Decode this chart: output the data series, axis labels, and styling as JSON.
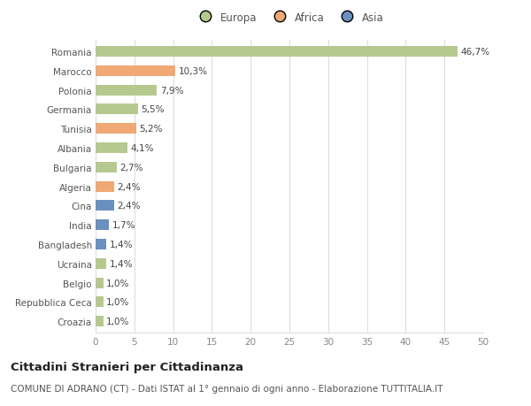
{
  "categories": [
    "Romania",
    "Marocco",
    "Polonia",
    "Germania",
    "Tunisia",
    "Albania",
    "Bulgaria",
    "Algeria",
    "Cina",
    "India",
    "Bangladesh",
    "Ucraina",
    "Belgio",
    "Repubblica Ceca",
    "Croazia"
  ],
  "values": [
    46.7,
    10.3,
    7.9,
    5.5,
    5.2,
    4.1,
    2.7,
    2.4,
    2.4,
    1.7,
    1.4,
    1.4,
    1.0,
    1.0,
    1.0
  ],
  "labels": [
    "46,7%",
    "10,3%",
    "7,9%",
    "5,5%",
    "5,2%",
    "4,1%",
    "2,7%",
    "2,4%",
    "2,4%",
    "1,7%",
    "1,4%",
    "1,4%",
    "1,0%",
    "1,0%",
    "1,0%"
  ],
  "continent": [
    "Europa",
    "Africa",
    "Europa",
    "Europa",
    "Africa",
    "Europa",
    "Europa",
    "Africa",
    "Asia",
    "Asia",
    "Asia",
    "Europa",
    "Europa",
    "Europa",
    "Europa"
  ],
  "colors": {
    "Europa": "#b5c98e",
    "Africa": "#f0a875",
    "Asia": "#6b8fbf"
  },
  "legend_labels": [
    "Europa",
    "Africa",
    "Asia"
  ],
  "legend_colors": [
    "#b5c98e",
    "#f0a875",
    "#6b8fbf"
  ],
  "xlim": [
    0,
    50
  ],
  "xticks": [
    0,
    5,
    10,
    15,
    20,
    25,
    30,
    35,
    40,
    45,
    50
  ],
  "title": "Cittadini Stranieri per Cittadinanza",
  "subtitle": "COMUNE DI ADRANO (CT) - Dati ISTAT al 1° gennaio di ogni anno - Elaborazione TUTTITALIA.IT",
  "bg_color": "#ffffff",
  "grid_color": "#dddddd",
  "bar_height": 0.55,
  "label_fontsize": 7.5,
  "title_fontsize": 9.5,
  "subtitle_fontsize": 7.5,
  "tick_fontsize": 7.5,
  "legend_fontsize": 8.5
}
